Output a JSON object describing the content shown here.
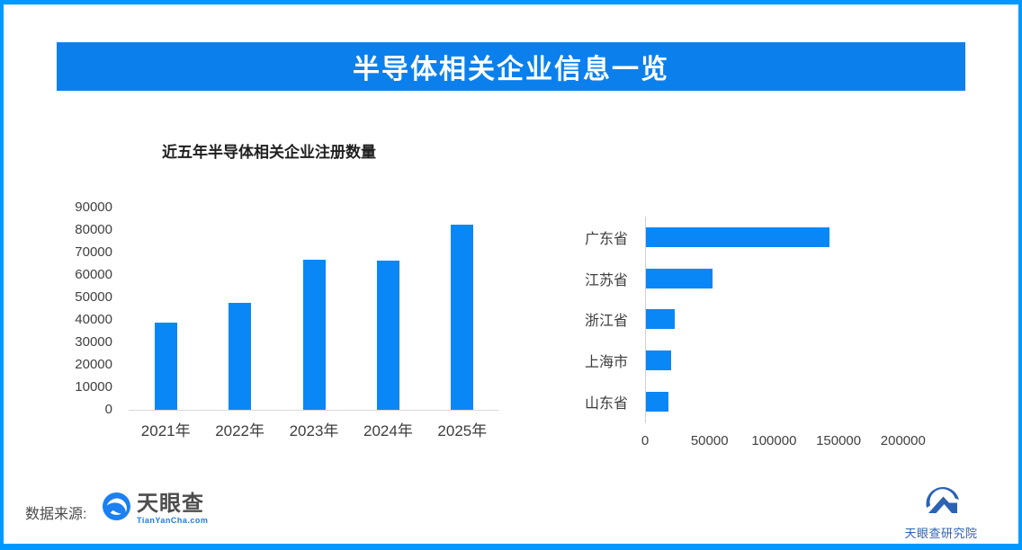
{
  "header": {
    "title": "半导体相关企业信息一览"
  },
  "colors": {
    "frame": "#0099ff",
    "banner": "#0b80ec",
    "bar": "#0a87f6",
    "axis_line": "#d9d9d9",
    "tick_text": "#404040",
    "site_link_blue": "#1a7ce8",
    "institute_blue": "#2b62b4"
  },
  "chart_data": [
    {
      "type": "bar",
      "orientation": "vertical",
      "title": "近五年半导体相关企业注册数量",
      "categories": [
        "2021年",
        "2022年",
        "2023年",
        "2024年",
        "2025年"
      ],
      "values": [
        39000,
        47500,
        67000,
        66500,
        82500
      ],
      "xlabel": "",
      "ylabel": "",
      "ylim": [
        0,
        90000
      ],
      "yticks": [
        0,
        10000,
        20000,
        30000,
        40000,
        50000,
        60000,
        70000,
        80000,
        90000
      ],
      "grid": false,
      "legend": false
    },
    {
      "type": "bar",
      "orientation": "horizontal",
      "title": "",
      "categories": [
        "广东省",
        "江苏省",
        "浙江省",
        "上海市",
        "山东省"
      ],
      "values": [
        143000,
        52500,
        23000,
        20500,
        18000
      ],
      "xlabel": "",
      "ylabel": "",
      "xlim": [
        0,
        235000
      ],
      "xticks": [
        0,
        50000,
        100000,
        150000,
        200000
      ],
      "grid": false,
      "legend": false
    }
  ],
  "footer": {
    "source_label": "数据来源:",
    "tianyancha_name": "天眼查",
    "tianyancha_site": "TianYanCha.com",
    "institute_name": "天眼查研究院"
  }
}
